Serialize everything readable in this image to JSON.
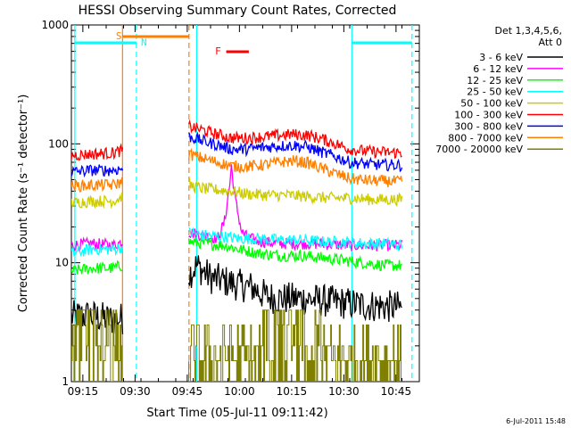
{
  "chart_data": {
    "type": "line",
    "title": "HESSI Observing Summary Count Rates, Corrected",
    "xlabel": "Start Time (05-Jul-11 09:11:42)",
    "ylabel": "Corrected Count Rate (s⁻¹ detector⁻¹)",
    "yscale": "log",
    "ylim": [
      1,
      1000
    ],
    "xlim_min": [
      0,
      100
    ],
    "x_ticks": [
      {
        "min": 3.3,
        "label": "09:15"
      },
      {
        "min": 18.3,
        "label": "09:30"
      },
      {
        "min": 33.3,
        "label": "09:45"
      },
      {
        "min": 48.3,
        "label": "10:00"
      },
      {
        "min": 63.3,
        "label": "10:15"
      },
      {
        "min": 78.3,
        "label": "10:30"
      },
      {
        "min": 93.3,
        "label": "10:45"
      }
    ],
    "y_ticks": [
      {
        "value": 1,
        "label": "1"
      },
      {
        "value": 10,
        "label": "10"
      },
      {
        "value": 100,
        "label": "100"
      },
      {
        "value": 1000,
        "label": "1000"
      }
    ],
    "legend": {
      "placement": "right",
      "header": [
        "Det 1,3,4,5,6,",
        "Att 0"
      ]
    },
    "series": [
      {
        "name": "3 - 6 keV",
        "color": "#000000",
        "x": [
          0,
          5,
          12,
          14.7,
          33.8,
          36,
          40,
          44,
          48,
          52,
          56,
          60,
          66,
          72,
          78,
          84,
          90,
          95
        ],
        "y": [
          3.5,
          3.6,
          3.3,
          3.4,
          8,
          9.5,
          7.5,
          7,
          6.5,
          6.2,
          5.2,
          5,
          5,
          4.8,
          4.6,
          4.4,
          4.3,
          4.2
        ]
      },
      {
        "name": "6 - 12 keV",
        "color": "#ff00ff",
        "x": [
          0,
          6,
          12,
          14.7,
          33.8,
          38,
          42,
          44,
          45.5,
          46,
          47,
          49,
          51,
          55,
          60,
          70,
          80,
          95
        ],
        "y": [
          14,
          14.5,
          14,
          15,
          18,
          17,
          16,
          22,
          45,
          65,
          35,
          18,
          16,
          15,
          14.5,
          14.5,
          14,
          14
        ]
      },
      {
        "name": "12 - 25 keV",
        "color": "#00ff00",
        "x": [
          0,
          6,
          12,
          14.7,
          33.8,
          38,
          44,
          48,
          54,
          60,
          66,
          72,
          78,
          84,
          90,
          95
        ],
        "y": [
          8.5,
          9,
          9,
          9.5,
          15,
          14.5,
          14,
          13,
          12,
          11.5,
          11.5,
          11,
          10.5,
          10,
          9.5,
          9.5
        ]
      },
      {
        "name": "25 - 50 keV",
        "color": "#00ffff",
        "x": [
          0,
          6,
          12,
          14.7,
          33.8,
          38,
          44,
          48,
          54,
          60,
          66,
          72,
          78,
          84,
          90,
          95
        ],
        "y": [
          12,
          13,
          13,
          13.5,
          18,
          17,
          16.5,
          16,
          16,
          15.5,
          15.5,
          15,
          15,
          14.5,
          14.5,
          14
        ]
      },
      {
        "name": "50 - 100 keV",
        "color": "#cccc00",
        "x": [
          0,
          6,
          12,
          14.7,
          33.8,
          38,
          42,
          46,
          50,
          56,
          62,
          68,
          74,
          80,
          86,
          95
        ],
        "y": [
          32,
          33,
          33,
          36,
          45,
          42,
          41,
          40,
          38,
          37,
          37,
          36,
          35,
          35,
          34,
          34
        ]
      },
      {
        "name": "100 - 300 keV",
        "color": "#ff0000",
        "x": [
          0,
          6,
          12,
          14.7,
          33.8,
          38,
          42,
          46,
          50,
          56,
          60,
          64,
          68,
          72,
          76,
          80,
          86,
          95
        ],
        "y": [
          80,
          82,
          84,
          88,
          140,
          130,
          120,
          112,
          112,
          115,
          118,
          120,
          118,
          110,
          100,
          90,
          86,
          84
        ]
      },
      {
        "name": "300 - 800 keV",
        "color": "#0000ff",
        "x": [
          0,
          6,
          12,
          14.7,
          33.8,
          38,
          42,
          46,
          50,
          56,
          60,
          64,
          68,
          72,
          76,
          80,
          86,
          95
        ],
        "y": [
          58,
          60,
          60,
          62,
          115,
          105,
          98,
          90,
          90,
          94,
          96,
          97,
          94,
          85,
          78,
          70,
          67,
          66
        ]
      },
      {
        "name": "800 - 7000 keV",
        "color": "#ff8000",
        "x": [
          0,
          6,
          12,
          14.7,
          33.8,
          38,
          42,
          46,
          50,
          56,
          60,
          64,
          68,
          72,
          76,
          80,
          86,
          95
        ],
        "y": [
          44,
          45,
          45,
          48,
          82,
          75,
          70,
          65,
          64,
          67,
          70,
          72,
          69,
          62,
          56,
          51,
          49,
          48
        ]
      },
      {
        "name": "7000 - 20000 keV",
        "color": "#808000",
        "x": [
          0,
          3,
          6,
          9,
          12,
          14.7,
          33.8,
          36,
          40,
          44,
          48,
          52,
          56,
          60,
          64,
          68,
          72,
          76,
          78,
          82,
          86,
          90,
          95
        ],
        "y": [
          1.6,
          1.8,
          1.5,
          1.9,
          1.7,
          1.8,
          2,
          2.4,
          2.6,
          2.2,
          2.1,
          2.0,
          2.2,
          3,
          3.2,
          2.8,
          2.4,
          2.1,
          1.7,
          1.6,
          1.8,
          1.5,
          1.6
        ]
      }
    ],
    "markers": [
      {
        "label": "S",
        "color": "#ff8000"
      },
      {
        "label": "N",
        "color": "#00ffff"
      },
      {
        "label": "F",
        "color": "#ff0000"
      }
    ],
    "footer_timestamp": "6-Jul-2011 15:48"
  }
}
